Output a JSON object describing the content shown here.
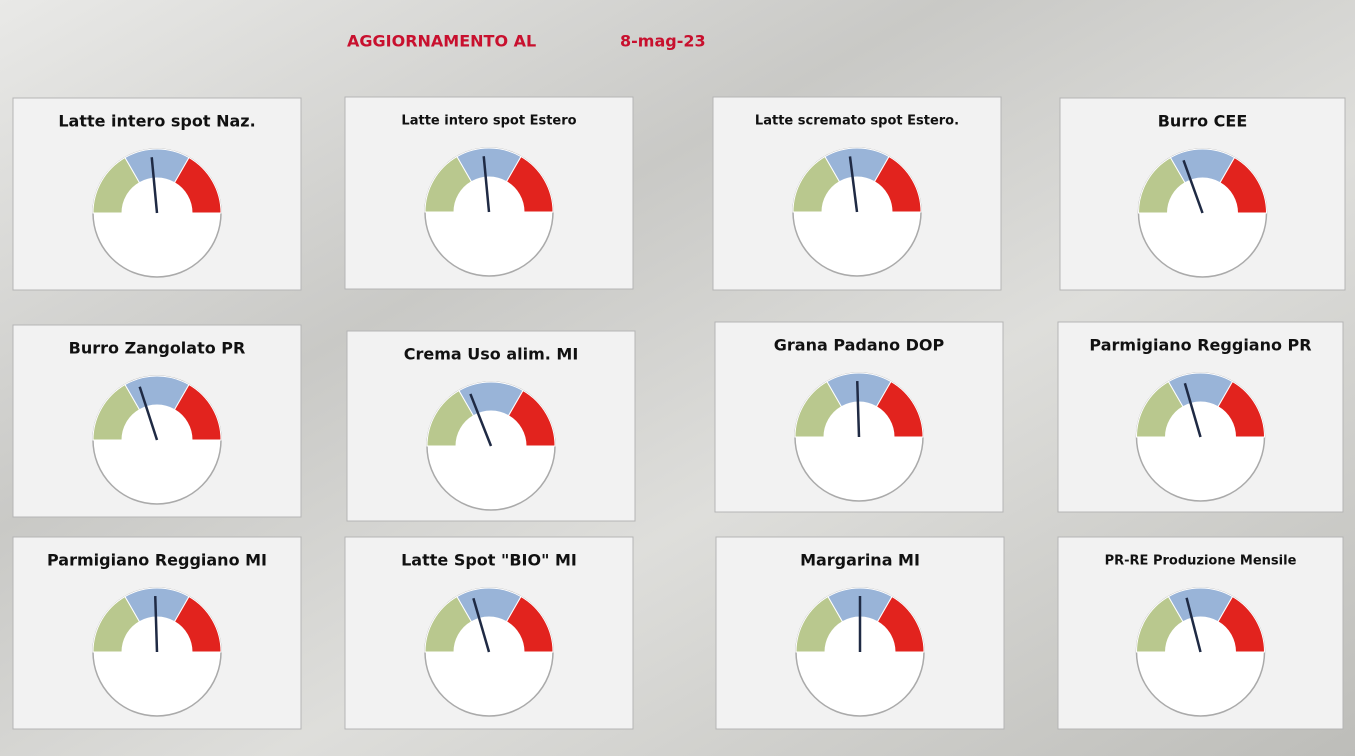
{
  "header": {
    "label": "AGGIORNAMENTO AL",
    "date": "8-mag-23"
  },
  "chart_data": [
    {
      "type": "gauge",
      "title": "Latte intero spot Naz.",
      "value": 47,
      "lim": [
        0,
        100
      ],
      "band_colors": [
        "#b9c88e",
        "#99b4d8",
        "#e2231e"
      ],
      "needle_color": "#1f2a44"
    },
    {
      "type": "gauge",
      "title": "Latte intero spot Estero",
      "value": 47,
      "lim": [
        0,
        100
      ],
      "band_colors": [
        "#b9c88e",
        "#99b4d8",
        "#e2231e"
      ],
      "needle_color": "#1f2a44"
    },
    {
      "type": "gauge",
      "title": "Latte scremato spot Estero.",
      "value": 46,
      "lim": [
        0,
        100
      ],
      "band_colors": [
        "#b9c88e",
        "#99b4d8",
        "#e2231e"
      ],
      "needle_color": "#1f2a44"
    },
    {
      "type": "gauge",
      "title": "Burro CEE",
      "value": 39,
      "lim": [
        0,
        100
      ],
      "band_colors": [
        "#b9c88e",
        "#99b4d8",
        "#e2231e"
      ],
      "needle_color": "#1f2a44"
    },
    {
      "type": "gauge",
      "title": "Burro Zangolato PR",
      "value": 40,
      "lim": [
        0,
        100
      ],
      "band_colors": [
        "#b9c88e",
        "#99b4d8",
        "#e2231e"
      ],
      "needle_color": "#1f2a44"
    },
    {
      "type": "gauge",
      "title": "Crema Uso alim. MI",
      "value": 38,
      "lim": [
        0,
        100
      ],
      "band_colors": [
        "#b9c88e",
        "#99b4d8",
        "#e2231e"
      ],
      "needle_color": "#1f2a44"
    },
    {
      "type": "gauge",
      "title": "Grana Padano DOP",
      "value": 49,
      "lim": [
        0,
        100
      ],
      "band_colors": [
        "#b9c88e",
        "#99b4d8",
        "#e2231e"
      ],
      "needle_color": "#1f2a44"
    },
    {
      "type": "gauge",
      "title": "Parmigiano Reggiano PR",
      "value": 41,
      "lim": [
        0,
        100
      ],
      "band_colors": [
        "#b9c88e",
        "#99b4d8",
        "#e2231e"
      ],
      "needle_color": "#1f2a44"
    },
    {
      "type": "gauge",
      "title": "Parmigiano Reggiano MI",
      "value": 49,
      "lim": [
        0,
        100
      ],
      "band_colors": [
        "#b9c88e",
        "#99b4d8",
        "#e2231e"
      ],
      "needle_color": "#1f2a44"
    },
    {
      "type": "gauge",
      "title": "Latte Spot \"BIO\" MI",
      "value": 41,
      "lim": [
        0,
        100
      ],
      "band_colors": [
        "#b9c88e",
        "#99b4d8",
        "#e2231e"
      ],
      "needle_color": "#1f2a44"
    },
    {
      "type": "gauge",
      "title": "Margarina MI",
      "value": 50,
      "lim": [
        0,
        100
      ],
      "band_colors": [
        "#b9c88e",
        "#99b4d8",
        "#e2231e"
      ],
      "needle_color": "#1f2a44"
    },
    {
      "type": "gauge",
      "title": "PR-RE Produzione Mensile",
      "value": 42,
      "lim": [
        0,
        100
      ],
      "band_colors": [
        "#b9c88e",
        "#99b4d8",
        "#e2231e"
      ],
      "needle_color": "#1f2a44"
    }
  ]
}
